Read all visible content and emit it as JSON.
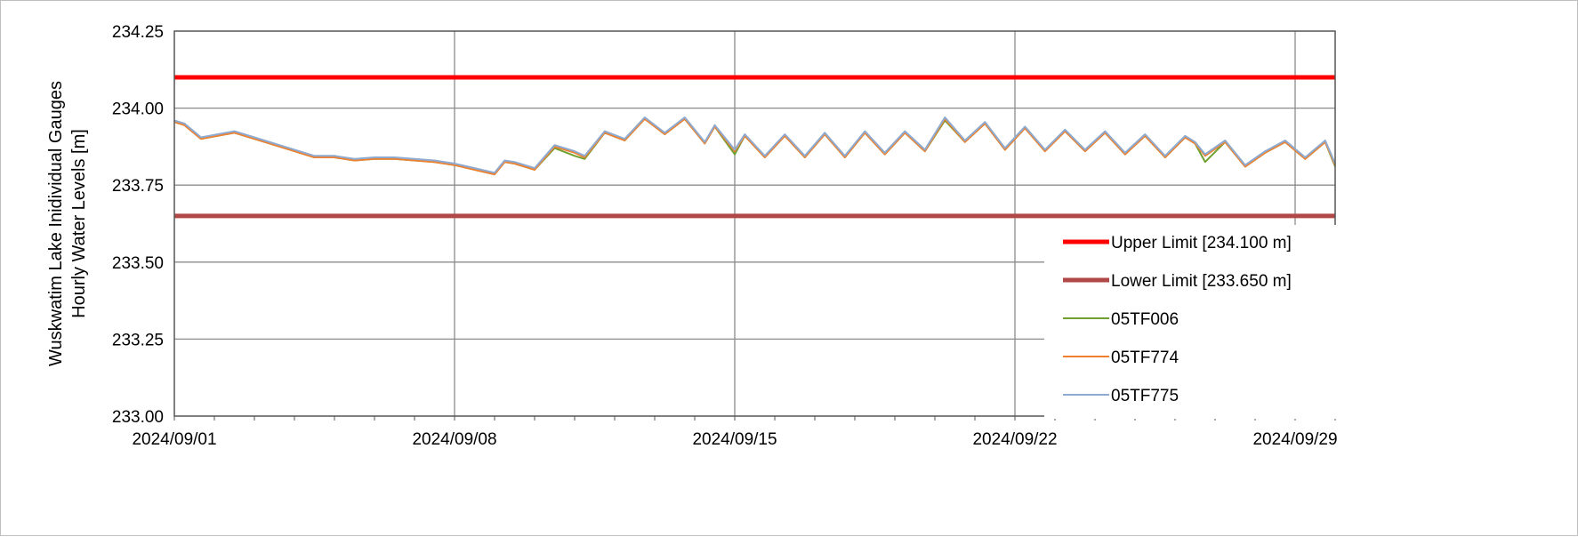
{
  "chart_data": {
    "type": "line",
    "title": "",
    "ylabel_lines": [
      "Wuskwatim Lake Inidividual Gauges",
      "Hourly Water Levels [m]"
    ],
    "xlabel": "",
    "ylim": [
      233.0,
      234.25
    ],
    "yticks": [
      233.0,
      233.25,
      233.5,
      233.75,
      234.0,
      234.25
    ],
    "ytick_labels": [
      "233.00",
      "233.25",
      "233.50",
      "233.75",
      "234.00",
      "234.25"
    ],
    "xlim": [
      "2024-09-01",
      "2024-09-30"
    ],
    "xticks": [
      "2024-09-01",
      "2024-09-08",
      "2024-09-15",
      "2024-09-22",
      "2024-09-29"
    ],
    "xtick_labels": [
      "2024/09/01",
      "2024/09/08",
      "2024/09/15",
      "2024/09/22",
      "2024/09/29"
    ],
    "grid": true,
    "legend_position": "bottom-right",
    "limits": [
      {
        "name": "Upper Limit [234.100 m]",
        "value": 234.1,
        "color": "#ff0000"
      },
      {
        "name": "Lower Limit [233.650 m]",
        "value": 233.65,
        "color": "#b04848"
      }
    ],
    "series": [
      {
        "name": "05TF006",
        "color": "#70a030",
        "x": [
          "2024-09-01 00:00",
          "2024-09-01 06:00",
          "2024-09-01 16:00",
          "2024-09-02 12:00",
          "2024-09-03 00:00",
          "2024-09-03 18:00",
          "2024-09-04 12:00",
          "2024-09-05 00:00",
          "2024-09-05 12:00",
          "2024-09-06 00:00",
          "2024-09-06 12:00",
          "2024-09-07 00:00",
          "2024-09-07 12:00",
          "2024-09-08 00:00",
          "2024-09-08 12:00",
          "2024-09-09 00:00",
          "2024-09-09 06:00",
          "2024-09-09 12:00",
          "2024-09-10 00:00",
          "2024-09-10 12:00",
          "2024-09-11 00:00",
          "2024-09-11 06:00",
          "2024-09-11 18:00",
          "2024-09-12 06:00",
          "2024-09-12 18:00",
          "2024-09-13 06:00",
          "2024-09-13 18:00",
          "2024-09-14 06:00",
          "2024-09-14 12:00",
          "2024-09-15 00:00",
          "2024-09-15 06:00",
          "2024-09-15 18:00",
          "2024-09-16 06:00",
          "2024-09-16 18:00",
          "2024-09-17 06:00",
          "2024-09-17 18:00",
          "2024-09-18 06:00",
          "2024-09-18 18:00",
          "2024-09-19 06:00",
          "2024-09-19 18:00",
          "2024-09-20 06:00",
          "2024-09-20 18:00",
          "2024-09-21 06:00",
          "2024-09-21 18:00",
          "2024-09-22 06:00",
          "2024-09-22 18:00",
          "2024-09-23 06:00",
          "2024-09-23 18:00",
          "2024-09-24 06:00",
          "2024-09-24 18:00",
          "2024-09-25 06:00",
          "2024-09-25 18:00",
          "2024-09-26 06:00",
          "2024-09-26 12:00",
          "2024-09-26 18:00",
          "2024-09-27 06:00",
          "2024-09-27 18:00",
          "2024-09-28 06:00",
          "2024-09-28 18:00",
          "2024-09-29 06:00",
          "2024-09-29 18:00",
          "2024-09-30 00:00"
        ],
        "y": [
          233.955,
          233.945,
          233.9,
          233.92,
          233.9,
          233.87,
          233.84,
          233.84,
          233.83,
          233.835,
          233.835,
          233.83,
          233.825,
          233.815,
          233.8,
          233.785,
          233.825,
          233.82,
          233.8,
          233.87,
          233.845,
          233.835,
          233.92,
          233.895,
          233.965,
          233.915,
          233.965,
          233.885,
          233.94,
          233.85,
          233.91,
          233.84,
          233.91,
          233.84,
          233.915,
          233.84,
          233.92,
          233.85,
          233.92,
          233.86,
          233.96,
          233.89,
          233.95,
          233.865,
          233.935,
          233.86,
          233.925,
          233.86,
          233.92,
          233.85,
          233.91,
          233.84,
          233.905,
          233.885,
          233.825,
          233.89,
          233.81,
          233.855,
          233.89,
          233.835,
          233.89,
          233.81
        ]
      },
      {
        "name": "05TF774",
        "color": "#f08030",
        "x": [
          "2024-09-01 00:00",
          "2024-09-01 06:00",
          "2024-09-01 16:00",
          "2024-09-02 12:00",
          "2024-09-03 00:00",
          "2024-09-03 18:00",
          "2024-09-04 12:00",
          "2024-09-05 00:00",
          "2024-09-05 12:00",
          "2024-09-06 00:00",
          "2024-09-06 12:00",
          "2024-09-07 00:00",
          "2024-09-07 12:00",
          "2024-09-08 00:00",
          "2024-09-08 12:00",
          "2024-09-09 00:00",
          "2024-09-09 06:00",
          "2024-09-09 12:00",
          "2024-09-10 00:00",
          "2024-09-10 12:00",
          "2024-09-11 00:00",
          "2024-09-11 06:00",
          "2024-09-11 18:00",
          "2024-09-12 06:00",
          "2024-09-12 18:00",
          "2024-09-13 06:00",
          "2024-09-13 18:00",
          "2024-09-14 06:00",
          "2024-09-14 12:00",
          "2024-09-15 00:00",
          "2024-09-15 06:00",
          "2024-09-15 18:00",
          "2024-09-16 06:00",
          "2024-09-16 18:00",
          "2024-09-17 06:00",
          "2024-09-17 18:00",
          "2024-09-18 06:00",
          "2024-09-18 18:00",
          "2024-09-19 06:00",
          "2024-09-19 18:00",
          "2024-09-20 06:00",
          "2024-09-20 18:00",
          "2024-09-21 06:00",
          "2024-09-21 18:00",
          "2024-09-22 06:00",
          "2024-09-22 18:00",
          "2024-09-23 06:00",
          "2024-09-23 18:00",
          "2024-09-24 06:00",
          "2024-09-24 18:00",
          "2024-09-25 06:00",
          "2024-09-25 18:00",
          "2024-09-26 06:00",
          "2024-09-26 12:00",
          "2024-09-26 18:00",
          "2024-09-27 06:00",
          "2024-09-27 18:00",
          "2024-09-28 06:00",
          "2024-09-28 18:00",
          "2024-09-29 06:00",
          "2024-09-29 18:00",
          "2024-09-30 00:00"
        ],
        "y": [
          233.955,
          233.945,
          233.9,
          233.92,
          233.9,
          233.87,
          233.84,
          233.84,
          233.83,
          233.835,
          233.835,
          233.83,
          233.825,
          233.815,
          233.8,
          233.785,
          233.825,
          233.82,
          233.8,
          233.875,
          233.855,
          233.84,
          233.92,
          233.895,
          233.965,
          233.915,
          233.965,
          233.885,
          233.94,
          233.86,
          233.91,
          233.84,
          233.91,
          233.84,
          233.915,
          233.84,
          233.92,
          233.85,
          233.92,
          233.86,
          233.965,
          233.89,
          233.95,
          233.865,
          233.935,
          233.86,
          233.925,
          233.86,
          233.92,
          233.85,
          233.91,
          233.84,
          233.905,
          233.885,
          233.845,
          233.89,
          233.81,
          233.855,
          233.89,
          233.835,
          233.89,
          233.815
        ]
      },
      {
        "name": "05TF775",
        "color": "#8eaacf",
        "x": [
          "2024-09-01 00:00",
          "2024-09-01 06:00",
          "2024-09-01 16:00",
          "2024-09-02 12:00",
          "2024-09-03 00:00",
          "2024-09-03 18:00",
          "2024-09-04 12:00",
          "2024-09-05 00:00",
          "2024-09-05 12:00",
          "2024-09-06 00:00",
          "2024-09-06 12:00",
          "2024-09-07 00:00",
          "2024-09-07 12:00",
          "2024-09-08 00:00",
          "2024-09-08 12:00",
          "2024-09-09 00:00",
          "2024-09-09 06:00",
          "2024-09-09 12:00",
          "2024-09-10 00:00",
          "2024-09-10 12:00",
          "2024-09-11 00:00",
          "2024-09-11 06:00",
          "2024-09-11 18:00",
          "2024-09-12 06:00",
          "2024-09-12 18:00",
          "2024-09-13 06:00",
          "2024-09-13 18:00",
          "2024-09-14 06:00",
          "2024-09-14 12:00",
          "2024-09-15 00:00",
          "2024-09-15 06:00",
          "2024-09-15 18:00",
          "2024-09-16 06:00",
          "2024-09-16 18:00",
          "2024-09-17 06:00",
          "2024-09-17 18:00",
          "2024-09-18 06:00",
          "2024-09-18 18:00",
          "2024-09-19 06:00",
          "2024-09-19 18:00",
          "2024-09-20 06:00",
          "2024-09-20 18:00",
          "2024-09-21 06:00",
          "2024-09-21 18:00",
          "2024-09-22 06:00",
          "2024-09-22 18:00",
          "2024-09-23 06:00",
          "2024-09-23 18:00",
          "2024-09-24 06:00",
          "2024-09-24 18:00",
          "2024-09-25 06:00",
          "2024-09-25 18:00",
          "2024-09-26 06:00",
          "2024-09-26 12:00",
          "2024-09-26 18:00",
          "2024-09-27 06:00",
          "2024-09-27 18:00",
          "2024-09-28 06:00",
          "2024-09-28 18:00",
          "2024-09-29 06:00",
          "2024-09-29 18:00",
          "2024-09-30 00:00"
        ],
        "y": [
          233.96,
          233.95,
          233.905,
          233.925,
          233.905,
          233.875,
          233.845,
          233.845,
          233.835,
          233.84,
          233.84,
          233.835,
          233.83,
          233.82,
          233.805,
          233.79,
          233.83,
          233.825,
          233.805,
          233.88,
          233.86,
          233.845,
          233.925,
          233.9,
          233.97,
          233.92,
          233.97,
          233.89,
          233.945,
          233.865,
          233.915,
          233.845,
          233.915,
          233.845,
          233.92,
          233.845,
          233.925,
          233.855,
          233.925,
          233.865,
          233.97,
          233.895,
          233.955,
          233.87,
          233.94,
          233.865,
          233.93,
          233.865,
          233.925,
          233.855,
          233.915,
          233.845,
          233.91,
          233.89,
          233.85,
          233.895,
          233.815,
          233.86,
          233.895,
          233.84,
          233.895,
          233.82
        ]
      }
    ]
  }
}
